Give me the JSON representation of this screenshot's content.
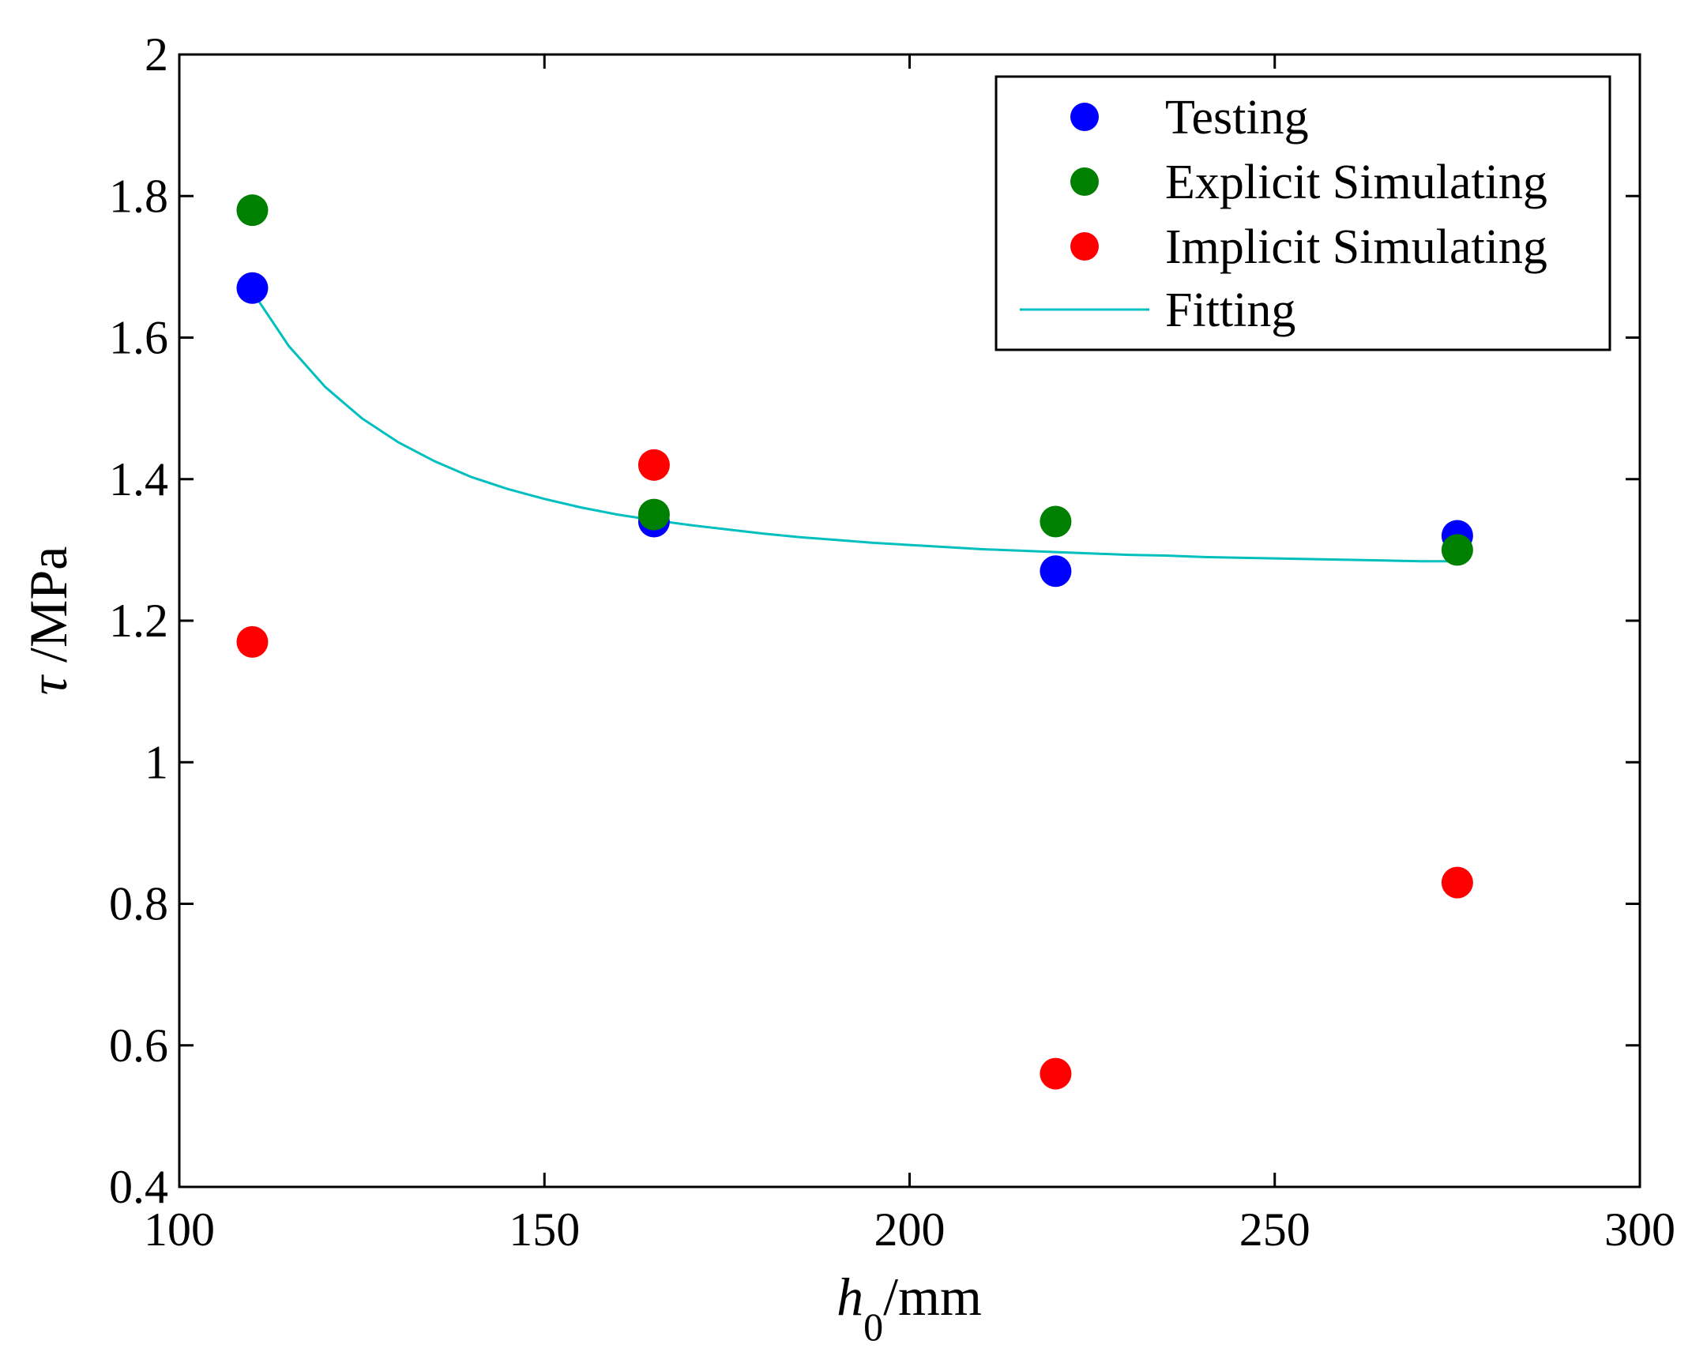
{
  "chart_data": {
    "type": "scatter",
    "title": "",
    "xlabel": {
      "symbol": "h",
      "subscript": "0",
      "unit": "/mm"
    },
    "ylabel": {
      "symbol": "τ",
      "unit": " /MPa"
    },
    "xlim": [
      100,
      300
    ],
    "ylim": [
      0.4,
      2
    ],
    "xticks": [
      100,
      150,
      200,
      250,
      300
    ],
    "yticks": [
      0.4,
      0.6,
      0.8,
      1,
      1.2,
      1.4,
      1.6,
      1.8,
      2
    ],
    "xtick_labels": [
      "100",
      "150",
      "200",
      "250",
      "300"
    ],
    "ytick_labels": [
      "0.4",
      "0.6",
      "0.8",
      "1",
      "1.2",
      "1.4",
      "1.6",
      "1.8",
      "2"
    ],
    "grid": false,
    "legend_position": "top-right",
    "series": [
      {
        "name": "Testing",
        "kind": "marker",
        "color": "#0000ff",
        "points": [
          [
            110,
            1.67
          ],
          [
            165,
            1.34
          ],
          [
            220,
            1.27
          ],
          [
            275,
            1.32
          ]
        ]
      },
      {
        "name": "Explicit Simulating",
        "kind": "marker",
        "color": "#008000",
        "points": [
          [
            110,
            1.78
          ],
          [
            165,
            1.35
          ],
          [
            220,
            1.34
          ],
          [
            275,
            1.3
          ]
        ]
      },
      {
        "name": "Implicit Simulating",
        "kind": "marker",
        "color": "#ff0000",
        "points": [
          [
            110,
            1.17
          ],
          [
            165,
            1.42
          ],
          [
            220,
            0.56
          ],
          [
            275,
            0.83
          ]
        ]
      },
      {
        "name": "Fitting",
        "kind": "line",
        "color": "#00bfbf",
        "points": [
          [
            110,
            1.665
          ],
          [
            115,
            1.588
          ],
          [
            120,
            1.53
          ],
          [
            125,
            1.486
          ],
          [
            130,
            1.452
          ],
          [
            135,
            1.425
          ],
          [
            140,
            1.403
          ],
          [
            145,
            1.386
          ],
          [
            150,
            1.372
          ],
          [
            155,
            1.36
          ],
          [
            160,
            1.35
          ],
          [
            165,
            1.342
          ],
          [
            170,
            1.335
          ],
          [
            175,
            1.329
          ],
          [
            180,
            1.323
          ],
          [
            185,
            1.318
          ],
          [
            190,
            1.314
          ],
          [
            195,
            1.31
          ],
          [
            200,
            1.307
          ],
          [
            205,
            1.304
          ],
          [
            210,
            1.301
          ],
          [
            215,
            1.299
          ],
          [
            220,
            1.297
          ],
          [
            225,
            1.295
          ],
          [
            230,
            1.293
          ],
          [
            235,
            1.292
          ],
          [
            240,
            1.29
          ],
          [
            245,
            1.289
          ],
          [
            250,
            1.288
          ],
          [
            255,
            1.287
          ],
          [
            260,
            1.286
          ],
          [
            265,
            1.285
          ],
          [
            270,
            1.284
          ],
          [
            275,
            1.284
          ]
        ]
      }
    ]
  }
}
